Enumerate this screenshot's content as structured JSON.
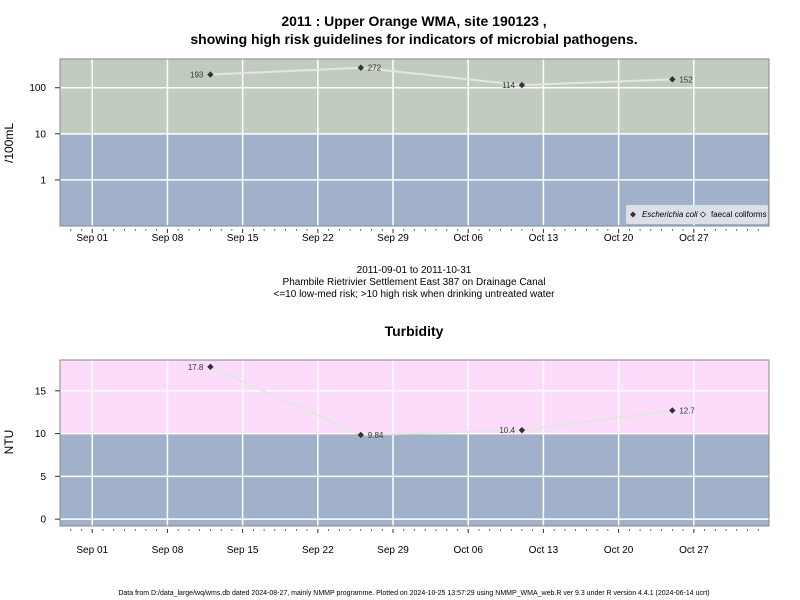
{
  "colors": {
    "high_band_micro": "#c2cbbf",
    "low_band": "#a1b1cb",
    "high_band_turb": "#fcdcfa",
    "line": "#e4e6e2",
    "marker": "#333333",
    "legend_bg": "#dcdfe6"
  },
  "chart_data": [
    {
      "type": "line",
      "title_line1": "2011 : Upper Orange WMA, site 190123 ,",
      "title_line2": "showing high risk guidelines for indicators of microbial pathogens.",
      "ylabel": "/100mL",
      "y_scale": "log",
      "ylim": [
        0.1,
        420
      ],
      "y_ticks": [
        "1",
        "10",
        "100"
      ],
      "guideline": 10,
      "x_ticks": [
        "Sep 01",
        "Sep 08",
        "Sep 15",
        "Sep 22",
        "Sep 29",
        "Oct 06",
        "Oct 13",
        "Oct 20",
        "Oct 27"
      ],
      "xlim": [
        "2011-08-29",
        "2011-11-03"
      ],
      "grid": true,
      "series": [
        {
          "name": "Escherichia coli",
          "x": [
            "2011-09-12",
            "2011-09-26",
            "2011-10-11",
            "2011-10-25"
          ],
          "values": [
            193,
            272,
            114,
            152
          ],
          "labels": [
            "193",
            "272",
            "114",
            "152"
          ]
        }
      ],
      "legend": {
        "placement": "bottom-right",
        "items": [
          "Escherichia coli",
          "faecal coliforms"
        ]
      }
    },
    {
      "type": "line",
      "title": "Turbidity",
      "ylabel": "NTU",
      "ylim": [
        -0.8,
        18.6
      ],
      "y_ticks": [
        "0",
        "5",
        "10",
        "15"
      ],
      "guideline": 10,
      "x_ticks": [
        "Sep 01",
        "Sep 08",
        "Sep 15",
        "Sep 22",
        "Sep 29",
        "Oct 06",
        "Oct 13",
        "Oct 20",
        "Oct 27"
      ],
      "xlim": [
        "2011-08-29",
        "2011-11-03"
      ],
      "grid": true,
      "series": [
        {
          "x": [
            "2011-09-12",
            "2011-09-26",
            "2011-10-11",
            "2011-10-25"
          ],
          "values": [
            17.8,
            9.84,
            10.4,
            12.7
          ],
          "labels": [
            "17.8",
            "9.84",
            "10.4",
            "12.7"
          ]
        }
      ]
    }
  ],
  "subtitle": {
    "line1": "2011-09-01 to 2011-10-31",
    "line2": "Phambile Rietrivier Settlement East 387 on Drainage Canal",
    "line3": "<=10 low-med risk; >10 high risk when drinking untreated water"
  },
  "footer": "Data from D:/data_large/wq/wms.db dated 2024-08-27, mainly NMMP programme. Plotted on 2024-10-25 13:57:29 using NMMP_WMA_web.R ver 9.3 under R version 4.4.1 (2024-06-14 ucrt)"
}
